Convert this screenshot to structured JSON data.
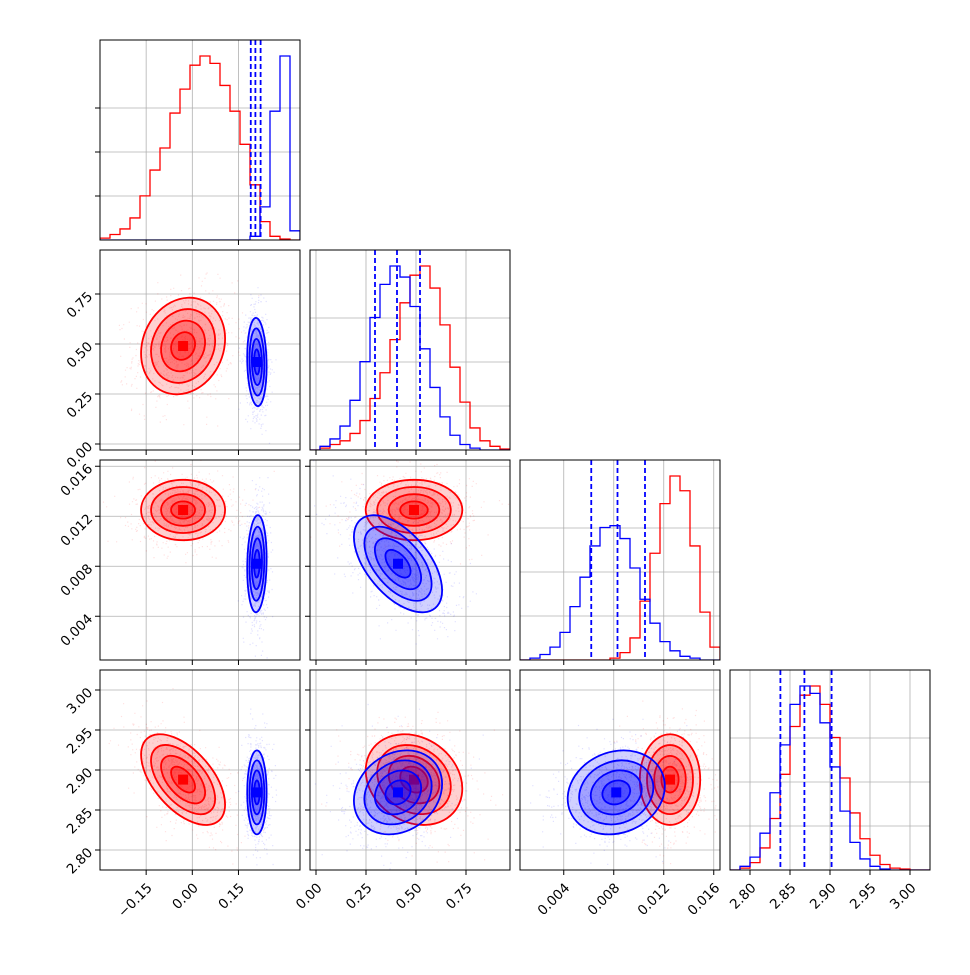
{
  "chart_data": {
    "type": "corner",
    "grid": true,
    "colors": {
      "a": "#ff0000",
      "b": "#0000ff"
    },
    "parameters": [
      {
        "range": [
          -0.3,
          0.35
        ],
        "ticks": [
          -0.15,
          0.0,
          0.15
        ],
        "tick_labels": [
          "−0.15",
          "0.00",
          "0.15"
        ]
      },
      {
        "range": [
          -0.03,
          0.97
        ],
        "ticks": [
          0.0,
          0.25,
          0.5,
          0.75
        ],
        "tick_labels": [
          "0.00",
          "0.25",
          "0.50",
          "0.75"
        ]
      },
      {
        "range": [
          0.0005,
          0.0165
        ],
        "ticks": [
          0.004,
          0.008,
          0.012,
          0.016
        ],
        "tick_labels": [
          "0.004",
          "0.008",
          "0.012",
          "0.016"
        ]
      },
      {
        "range": [
          2.775,
          3.025
        ],
        "ticks": [
          2.8,
          2.85,
          2.9,
          2.95,
          3.0
        ],
        "tick_labels": [
          "2.80",
          "2.85",
          "2.90",
          "2.95",
          "3.00"
        ]
      }
    ],
    "series": [
      {
        "key": "a",
        "color": "#ff0000",
        "mean": [
          -0.03,
          0.49,
          0.0125,
          2.888
        ],
        "sd": [
          0.065,
          0.115,
          0.00115,
          0.027
        ],
        "corr": {
          "0-1": 0.15,
          "0-2": 0.0,
          "0-3": -0.55,
          "1-2": 0.0,
          "1-3": -0.2,
          "2-3": 0.0
        },
        "hist": [
          [
            0.01,
            0.03,
            0.06,
            0.12,
            0.24,
            0.38,
            0.5,
            0.69,
            0.82,
            0.95,
            1.0,
            0.96,
            0.84,
            0.7,
            0.52,
            0.3,
            0.1,
            0.02,
            0.005,
            0.0
          ],
          [
            0.0,
            0.01,
            0.03,
            0.05,
            0.09,
            0.16,
            0.28,
            0.42,
            0.6,
            0.8,
            0.95,
            1.0,
            0.88,
            0.68,
            0.45,
            0.26,
            0.12,
            0.05,
            0.02,
            0.005
          ],
          [
            0.0,
            0.0,
            0.0,
            0.0,
            0.0,
            0.0,
            0.0,
            0.0,
            0.0,
            0.01,
            0.04,
            0.12,
            0.32,
            0.58,
            0.85,
            1.0,
            0.92,
            0.62,
            0.26,
            0.07
          ],
          [
            0.0,
            0.01,
            0.04,
            0.12,
            0.28,
            0.52,
            0.78,
            0.95,
            1.0,
            0.9,
            0.72,
            0.5,
            0.31,
            0.17,
            0.08,
            0.03,
            0.01,
            0.005,
            0.0,
            0.0
          ]
        ],
        "quantiles": []
      },
      {
        "key": "b",
        "color": "#0000ff",
        "mean": [
          0.21,
          0.41,
          0.0082,
          2.872
        ],
        "sd": [
          0.015,
          0.105,
          0.00185,
          0.025
        ],
        "corr": {
          "0-1": -0.1,
          "0-2": 0.1,
          "0-3": 0.0,
          "1-2": -0.55,
          "1-3": 0.2,
          "2-3": 0.15
        },
        "hist": [
          [
            0.0,
            0.0,
            0.0,
            0.0,
            0.0,
            0.0,
            0.0,
            0.0,
            0.0,
            0.0,
            0.0,
            0.0,
            0.0,
            0.0,
            0.0,
            0.02,
            0.18,
            0.7,
            1.0,
            0.05
          ],
          [
            0.0,
            0.02,
            0.06,
            0.13,
            0.27,
            0.48,
            0.72,
            0.9,
            1.0,
            0.94,
            0.78,
            0.55,
            0.34,
            0.18,
            0.08,
            0.03,
            0.01,
            0.0,
            0.0,
            0.0
          ],
          [
            0.0,
            0.01,
            0.03,
            0.07,
            0.15,
            0.29,
            0.45,
            0.62,
            0.72,
            0.73,
            0.66,
            0.5,
            0.33,
            0.2,
            0.1,
            0.05,
            0.02,
            0.01,
            0.0,
            0.0
          ],
          [
            0.0,
            0.02,
            0.07,
            0.2,
            0.42,
            0.68,
            0.9,
            1.0,
            0.96,
            0.8,
            0.56,
            0.32,
            0.15,
            0.06,
            0.02,
            0.005,
            0.0,
            0.0,
            0.0,
            0.0
          ]
        ],
        "quantiles": [
          [
            0.19,
            0.205,
            0.222
          ],
          [
            0.295,
            0.405,
            0.52
          ],
          [
            0.0062,
            0.0083,
            0.0105
          ],
          [
            2.838,
            2.868,
            2.902
          ]
        ]
      }
    ]
  }
}
